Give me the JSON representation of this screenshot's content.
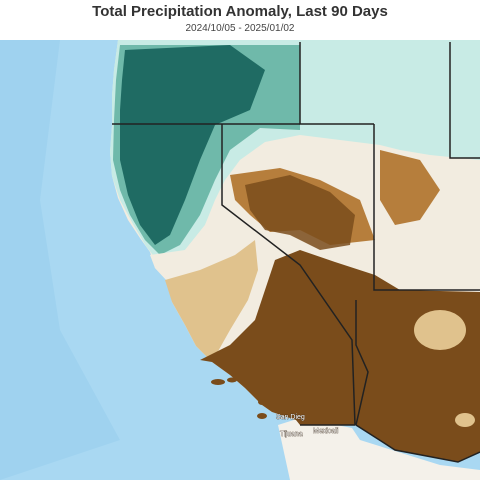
{
  "header": {
    "title": "Total Precipitation Anomaly, Last 90 Days",
    "subtitle": "2024/10/05 - 2025/01/02"
  },
  "map": {
    "colors": {
      "ocean": "#a9d8f2",
      "ocean_deep": "#8cc8ec",
      "dry_strong": "#7a4c1b",
      "dry_medium": "#b67e3c",
      "dry_light": "#e0c28d",
      "neutral": "#f2ece0",
      "wet_light": "#c8ebe5",
      "wet_medium": "#6fb9aa",
      "wet_strong": "#1f6b63",
      "mexico_land": "#f4f1ea",
      "border": "#222222"
    },
    "place_labels": [
      {
        "name": "san-diego",
        "text": "San Dieg"
      },
      {
        "name": "tijuana",
        "text": "Tijuana"
      },
      {
        "name": "mexicali",
        "text": "Mexicali"
      }
    ]
  }
}
